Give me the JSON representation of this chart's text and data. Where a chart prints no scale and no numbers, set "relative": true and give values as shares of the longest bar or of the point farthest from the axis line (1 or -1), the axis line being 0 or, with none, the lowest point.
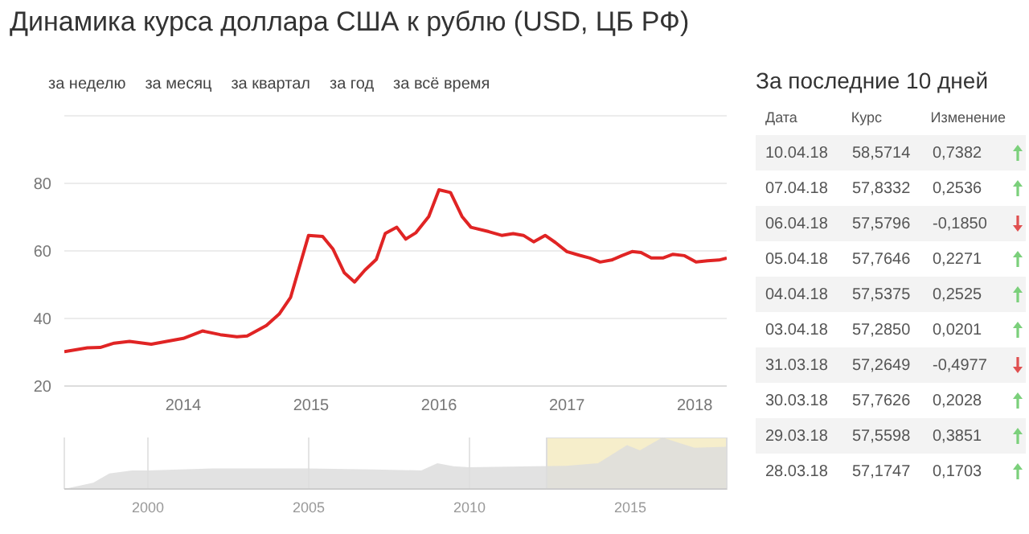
{
  "chart_data": [
    {
      "type": "line",
      "title": "Динамика курса доллара США к рублю (USD, ЦБ РФ)",
      "annotations": [
        "за неделю",
        "за месяц",
        "за квартал",
        "за год",
        "за всё время"
      ],
      "x": [
        2013.07,
        2013.25,
        2013.35,
        2013.46,
        2013.58,
        2013.75,
        2013.87,
        2014.0,
        2014.15,
        2014.29,
        2014.42,
        2014.5,
        2014.65,
        2014.75,
        2014.84,
        2014.98,
        2015.09,
        2015.17,
        2015.26,
        2015.34,
        2015.42,
        2015.51,
        2015.58,
        2015.67,
        2015.74,
        2015.82,
        2015.92,
        2016.0,
        2016.09,
        2016.18,
        2016.25,
        2016.39,
        2016.49,
        2016.58,
        2016.66,
        2016.74,
        2016.83,
        2016.91,
        2017.0,
        2017.1,
        2017.18,
        2017.26,
        2017.35,
        2017.43,
        2017.51,
        2017.58,
        2017.66,
        2017.75,
        2017.83,
        2017.92,
        2018.01,
        2018.1,
        2018.19,
        2018.25
      ],
      "series": [
        {
          "color": "#e02424",
          "values": [
            30.2,
            31.3,
            31.4,
            32.7,
            33.2,
            32.4,
            33.2,
            34.1,
            36.3,
            35.2,
            34.6,
            34.8,
            37.9,
            41.3,
            46.3,
            64.6,
            64.3,
            60.6,
            53.5,
            50.8,
            54.3,
            57.5,
            65.2,
            67.0,
            63.5,
            65.4,
            70.2,
            78.1,
            77.3,
            70.2,
            67.0,
            65.7,
            64.6,
            65.1,
            64.6,
            62.7,
            64.6,
            62.5,
            59.8,
            58.7,
            57.9,
            56.7,
            57.3,
            58.6,
            59.8,
            59.5,
            57.9,
            57.9,
            59.0,
            58.6,
            56.7,
            57.1,
            57.3,
            57.9
          ]
        }
      ],
      "xlim": [
        2013.07,
        2018.25
      ],
      "xticks": [
        2014,
        2015,
        2016,
        2017,
        2018
      ],
      "ylim": [
        20,
        100
      ],
      "yticks": [
        20,
        40,
        60,
        80
      ],
      "grid": "y",
      "marker": "none",
      "line_style": "solid"
    },
    {
      "type": "other",
      "title": "За последние 10 дней",
      "annotations": [
        "Дата",
        "Курс",
        "Изменение",
        "10.04.18",
        "58,5714",
        "0,7382",
        "07.04.18",
        "57,8332",
        "0,2536",
        "06.04.18",
        "57,5796",
        "-0,1850",
        "05.04.18",
        "57,7646",
        "0,2271",
        "04.04.18",
        "57,5375",
        "0,2525",
        "03.04.18",
        "57,2850",
        "0,0201",
        "31.03.18",
        "57,2649",
        "-0,4977",
        "30.03.18",
        "57,7626",
        "0,2028",
        "29.03.18",
        "57,5598",
        "0,3851",
        "28.03.18",
        "57,1747",
        "0,1703"
      ]
    },
    {
      "type": "area",
      "relative": true,
      "x": [
        1997.4,
        1998.3,
        1998.8,
        1999.5,
        2000,
        2002,
        2004,
        2005,
        2007,
        2008.5,
        2009,
        2009.5,
        2010,
        2012,
        2013,
        2014,
        2014.9,
        2015.3,
        2016,
        2016.5,
        2017,
        2018
      ],
      "series": [
        {
          "color": "#dddddd",
          "values": [
            0,
            0.12,
            0.3,
            0.36,
            0.36,
            0.4,
            0.4,
            0.4,
            0.38,
            0.36,
            0.5,
            0.44,
            0.42,
            0.44,
            0.45,
            0.5,
            0.85,
            0.75,
            1,
            0.9,
            0.8,
            0.82
          ]
        }
      ],
      "xlim": [
        1997.4,
        2018.0
      ],
      "xticks": [
        2000,
        2005,
        2010,
        2015
      ],
      "grid": "x",
      "bands": [
        {
          "axis": "x",
          "from": 2012.4,
          "to": 2018.0,
          "color": "#f6eecb"
        }
      ]
    }
  ]
}
